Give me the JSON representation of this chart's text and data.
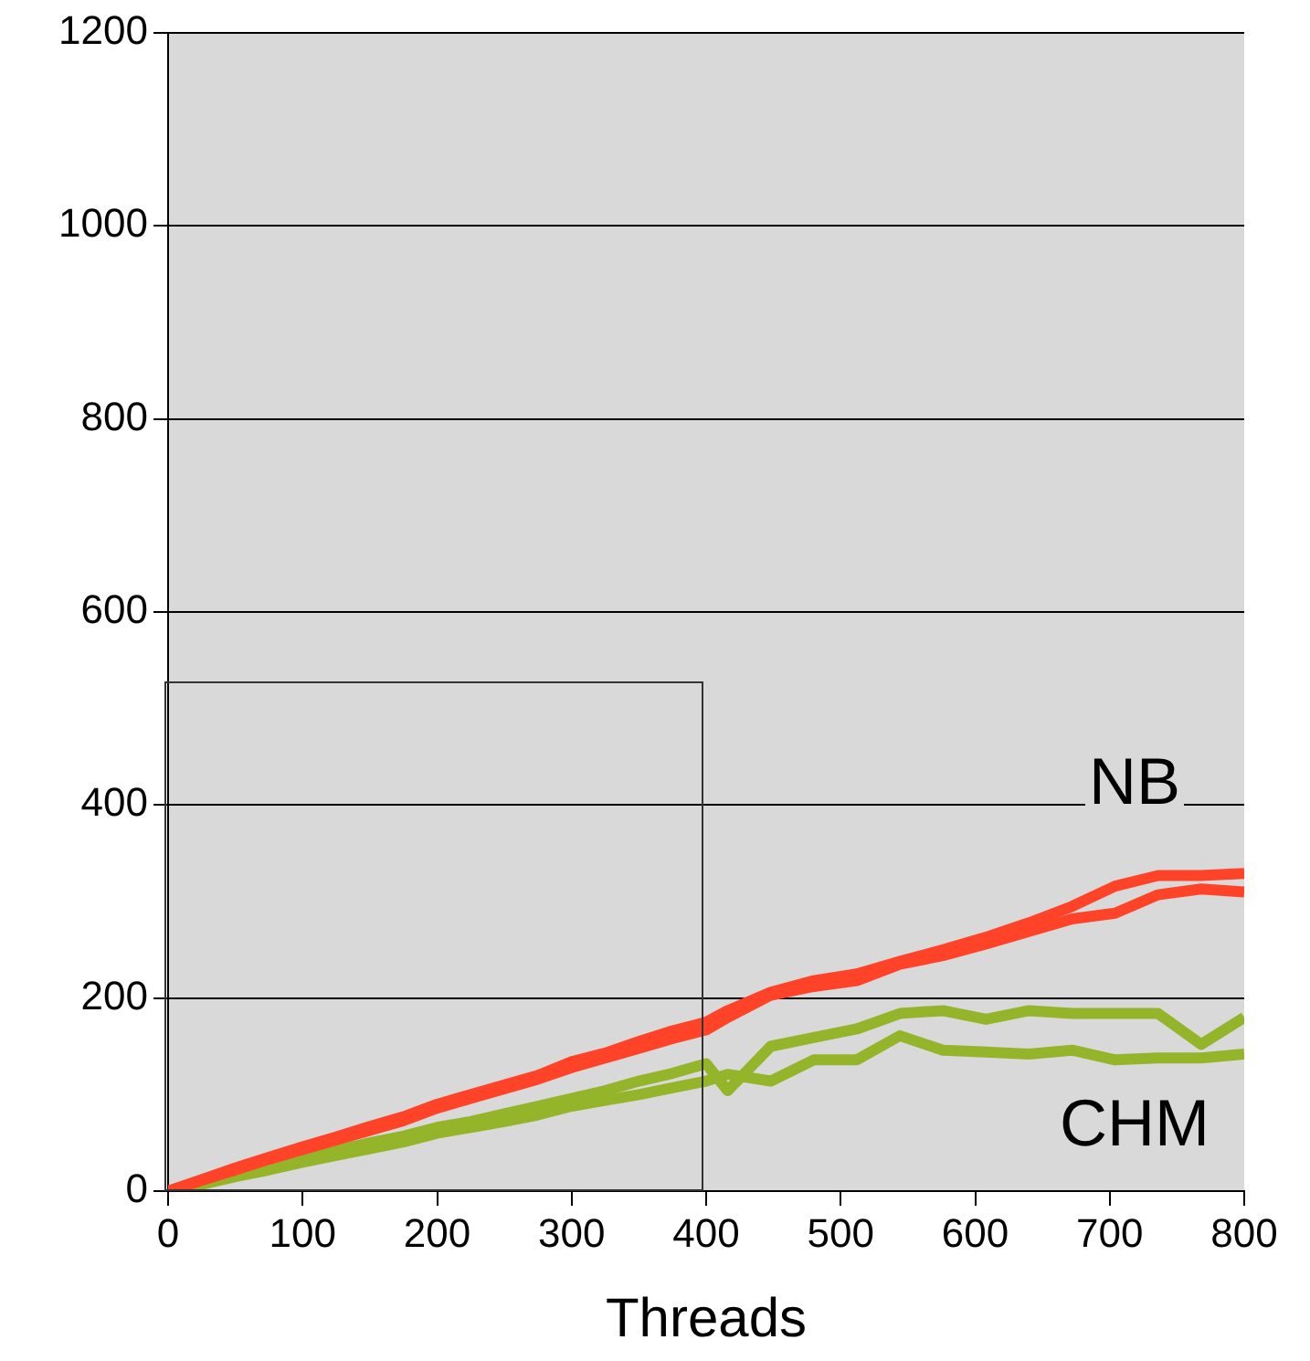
{
  "chart_data": {
    "type": "line",
    "xlabel": "Threads",
    "xlim": [
      0,
      800
    ],
    "xticks": [
      0,
      100,
      200,
      300,
      400,
      500,
      600,
      700,
      800
    ],
    "ylim": [
      0,
      1200
    ],
    "yticks": [
      0,
      200,
      400,
      600,
      800,
      1000,
      1200
    ],
    "grid": "y",
    "legend": false,
    "marker": "none",
    "line_style": "solid",
    "x": [
      0,
      25,
      50,
      75,
      100,
      125,
      150,
      175,
      200,
      225,
      250,
      275,
      300,
      325,
      350,
      375,
      400,
      416,
      448,
      480,
      512,
      544,
      576,
      608,
      640,
      672,
      704,
      736,
      768,
      800
    ],
    "series": [
      {
        "name": "NB",
        "color": "#ff4328",
        "values": [
          0,
          12,
          24,
          35,
          46,
          56,
          67,
          77,
          90,
          100,
          110,
          120,
          134,
          143,
          155,
          166,
          175,
          187,
          206,
          218,
          225,
          238,
          250,
          263,
          278,
          295,
          316,
          327,
          327,
          329
        ]
      },
      {
        "color": "#ff4328",
        "values": [
          0,
          11,
          22,
          33,
          43,
          53,
          63,
          73,
          86,
          96,
          106,
          116,
          128,
          138,
          148,
          158,
          167,
          180,
          203,
          212,
          218,
          235,
          244,
          256,
          269,
          282,
          288,
          307,
          313,
          310
        ]
      },
      {
        "name": "CHM",
        "color": "#94b42a",
        "values": [
          0,
          8,
          17,
          25,
          34,
          42,
          50,
          57,
          66,
          72,
          80,
          88,
          96,
          104,
          114,
          122,
          132,
          104,
          150,
          159,
          168,
          184,
          187,
          178,
          187,
          184,
          184,
          184,
          152,
          180
        ]
      },
      {
        "color": "#94b42a",
        "values": [
          0,
          7,
          15,
          22,
          30,
          37,
          44,
          51,
          60,
          66,
          72,
          79,
          88,
          94,
          100,
          107,
          114,
          121,
          114,
          136,
          136,
          161,
          146,
          144,
          142,
          146,
          136,
          138,
          138,
          142
        ]
      }
    ]
  }
}
